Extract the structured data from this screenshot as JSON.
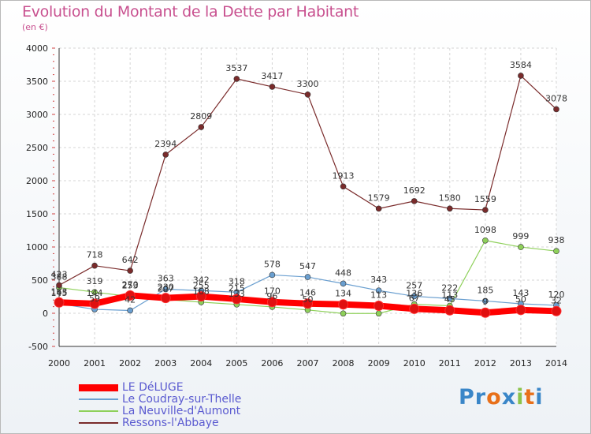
{
  "chart_data": {
    "type": "line",
    "title": "Evolution du Montant de la Dette par Habitant",
    "subtitle": "(en €)",
    "x": [
      "2000",
      "2001",
      "2002",
      "2003",
      "2004",
      "2005",
      "2006",
      "2007",
      "2008",
      "2009",
      "2010",
      "2011",
      "2012",
      "2013",
      "2014"
    ],
    "ylim": [
      -500,
      4000
    ],
    "yticks": [
      -500,
      0,
      500,
      1000,
      1500,
      2000,
      2500,
      3000,
      3500,
      4000
    ],
    "grid": true,
    "legend_position": "bottom-left",
    "series": [
      {
        "name": "LE DéLUGE",
        "color": "#ff0000",
        "values": [
          163,
          144,
          270,
          230,
          255,
          215,
          170,
          146,
          134,
          113,
          67,
          45,
          9,
          50,
          32
        ],
        "labels": [
          "163",
          "144",
          "270",
          "230",
          "255",
          "215",
          "170",
          "146",
          "134",
          "113",
          "67",
          "45",
          "9",
          "50",
          "32"
        ]
      },
      {
        "name": "Le Coudray-sur-Thelle",
        "color": "#6a9fd0",
        "values": [
          145,
          59,
          42,
          363,
          342,
          318,
          578,
          547,
          448,
          343,
          257,
          222,
          185,
          143,
          120
        ],
        "labels": [
          "145",
          "59",
          "42",
          "363",
          "342",
          "318",
          "578",
          "547",
          "448",
          "343",
          "257",
          "222",
          "185",
          "143",
          "120"
        ]
      },
      {
        "name": "La Neuville-d'Aumont",
        "color": "#8ed05a",
        "values": [
          388,
          319,
          253,
          207,
          168,
          133,
          96,
          50,
          -3,
          -3,
          136,
          113,
          1098,
          999,
          938
        ],
        "labels": [
          "388",
          "319",
          "253",
          "207",
          "168",
          "133",
          "96",
          "50",
          "",
          "",
          "136",
          "113",
          "1098",
          "999",
          "938"
        ]
      },
      {
        "name": "Ressons-l'Abbaye",
        "color": "#7a2b2b",
        "values": [
          423,
          718,
          642,
          2394,
          2809,
          3537,
          3417,
          3300,
          1913,
          1579,
          1692,
          1580,
          1559,
          3584,
          3078
        ],
        "labels": [
          "423",
          "718",
          "642",
          "2394",
          "2809",
          "3537",
          "3417",
          "3300",
          "1913",
          "1579",
          "1692",
          "1580",
          "1559",
          "3584",
          "3078"
        ]
      }
    ]
  },
  "logo": {
    "letters": [
      "P",
      "r",
      "o",
      "x",
      "i",
      "t",
      "i"
    ],
    "colors": [
      "#3a86c8",
      "#3a86c8",
      "#e8701a",
      "#3a86c8",
      "#8bc34a",
      "#e8701a",
      "#3a86c8"
    ]
  }
}
